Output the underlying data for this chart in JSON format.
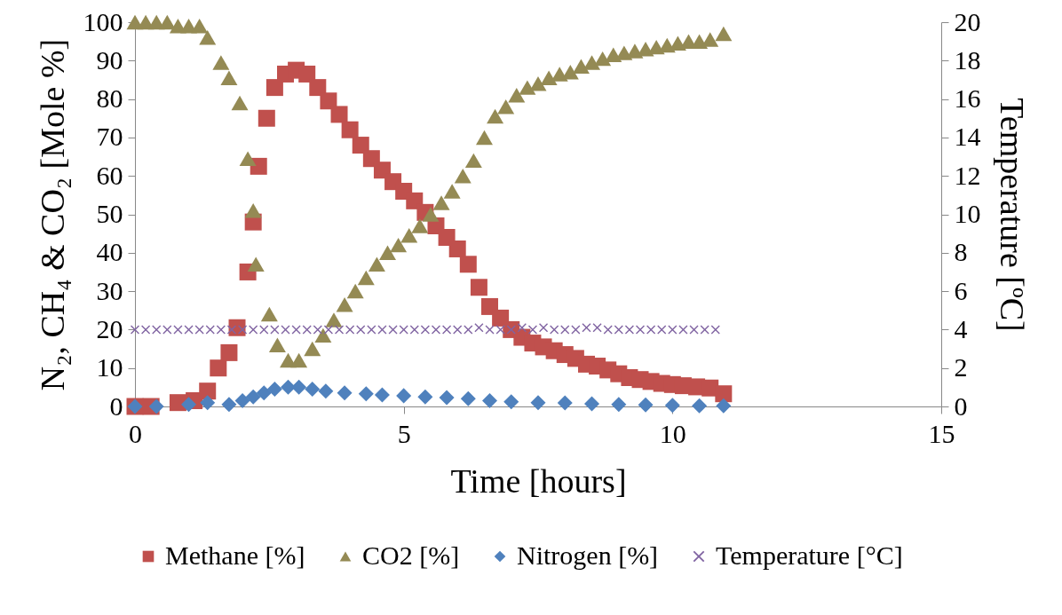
{
  "chart_data": {
    "type": "scatter",
    "xlabel": "Time [hours]",
    "ylabel": "N₂, CH₄ & CO₂ [Mole %]",
    "y2label": "Temperature [ºC]",
    "xlim": [
      0,
      15
    ],
    "xticks": [
      0,
      5,
      10,
      15
    ],
    "ylim": [
      0,
      100
    ],
    "yticks": [
      0,
      10,
      20,
      30,
      40,
      50,
      60,
      70,
      80,
      90,
      100
    ],
    "y2lim": [
      0,
      20
    ],
    "y2ticks": [
      0,
      2,
      4,
      6,
      8,
      10,
      12,
      14,
      16,
      18,
      20
    ],
    "legend": "bottom",
    "series": [
      {
        "name": "Methane [%]",
        "color": "#c0504d",
        "marker": "square",
        "x": [
          0,
          0.3,
          0.8,
          1.1,
          1.35,
          1.55,
          1.75,
          1.9,
          2.1,
          2.2,
          2.3,
          2.45,
          2.6,
          2.8,
          3.0,
          3.2,
          3.4,
          3.6,
          3.8,
          4.0,
          4.2,
          4.4,
          4.6,
          4.8,
          5.0,
          5.2,
          5.4,
          5.6,
          5.8,
          6.0,
          6.2,
          6.4,
          6.6,
          6.8,
          7.0,
          7.2,
          7.4,
          7.6,
          7.8,
          8.0,
          8.2,
          8.4,
          8.6,
          8.8,
          9.0,
          9.2,
          9.4,
          9.6,
          9.8,
          10.0,
          10.2,
          10.45,
          10.7,
          10.95
        ],
        "values": [
          0,
          0,
          1,
          1.5,
          4,
          10,
          14,
          20.5,
          35,
          48,
          62.5,
          75,
          83,
          86.5,
          87.5,
          86.5,
          83,
          79.5,
          76,
          72,
          68,
          64.5,
          61.5,
          58.5,
          56,
          53.5,
          50.5,
          47,
          44,
          41,
          37,
          31,
          26,
          23,
          20,
          18,
          16.5,
          15.5,
          14.5,
          13.5,
          12.5,
          11,
          10.5,
          9.5,
          8.5,
          7.5,
          7,
          6.5,
          6,
          5.7,
          5.4,
          5.1,
          4.8,
          3.3
        ]
      },
      {
        "name": "CO2 [%]",
        "color": "#948a54",
        "marker": "triangle",
        "x": [
          0,
          0.2,
          0.4,
          0.6,
          0.8,
          1.0,
          1.2,
          1.35,
          1.6,
          1.75,
          1.95,
          2.1,
          2.2,
          2.25,
          2.5,
          2.65,
          2.85,
          3.05,
          3.3,
          3.5,
          3.7,
          3.9,
          4.1,
          4.3,
          4.5,
          4.7,
          4.9,
          5.1,
          5.3,
          5.5,
          5.7,
          5.9,
          6.1,
          6.3,
          6.5,
          6.7,
          6.9,
          7.1,
          7.3,
          7.5,
          7.7,
          7.9,
          8.1,
          8.3,
          8.5,
          8.7,
          8.9,
          9.1,
          9.3,
          9.5,
          9.7,
          9.9,
          10.1,
          10.3,
          10.5,
          10.7,
          10.95
        ],
        "values": [
          100,
          100,
          100,
          100,
          99,
          99,
          99,
          96,
          89.5,
          85.5,
          79,
          64.5,
          51,
          37,
          24,
          16,
          12,
          12,
          15,
          18.5,
          22.5,
          26.5,
          30,
          33.5,
          37,
          40,
          42,
          44.5,
          47,
          50,
          53,
          56,
          60,
          64,
          70,
          75.5,
          78,
          81,
          83,
          84,
          85.5,
          86.5,
          87,
          88.5,
          89.5,
          90.5,
          91.5,
          92,
          92.5,
          93,
          93.5,
          94,
          94.5,
          95,
          95,
          95.5,
          97
        ]
      },
      {
        "name": "Nitrogen [%]",
        "color": "#4f81bd",
        "marker": "diamond",
        "x": [
          0,
          0.4,
          1.0,
          1.35,
          1.75,
          2.0,
          2.2,
          2.4,
          2.6,
          2.85,
          3.05,
          3.3,
          3.55,
          3.9,
          4.3,
          4.6,
          5.0,
          5.4,
          5.8,
          6.2,
          6.6,
          7.0,
          7.5,
          8.0,
          8.5,
          9.0,
          9.5,
          10.0,
          10.5,
          10.95
        ],
        "values": [
          0,
          0,
          0.5,
          1,
          0.5,
          1.5,
          2.5,
          3.5,
          4.5,
          5,
          5,
          4.5,
          4,
          3.5,
          3.3,
          3,
          2.8,
          2.5,
          2.3,
          2,
          1.5,
          1.2,
          1,
          0.9,
          0.7,
          0.5,
          0.4,
          0.3,
          0.2,
          0.2
        ]
      },
      {
        "name": "Temperature [°C]",
        "color": "#8064a2",
        "marker": "cross",
        "axis": "y2",
        "x": [
          0,
          0.2,
          0.4,
          0.6,
          0.8,
          1.0,
          1.2,
          1.4,
          1.6,
          1.8,
          2.0,
          2.2,
          2.4,
          2.6,
          2.8,
          3.0,
          3.2,
          3.4,
          3.6,
          3.8,
          4.0,
          4.2,
          4.4,
          4.6,
          4.8,
          5.0,
          5.2,
          5.4,
          5.6,
          5.8,
          6.0,
          6.2,
          6.4,
          6.6,
          6.8,
          7.0,
          7.2,
          7.4,
          7.6,
          7.8,
          8.0,
          8.2,
          8.4,
          8.6,
          8.8,
          9.0,
          9.2,
          9.4,
          9.6,
          9.8,
          10.0,
          10.2,
          10.4,
          10.6,
          10.8
        ],
        "values": [
          4,
          4,
          4,
          4,
          4,
          4,
          4,
          4,
          4,
          4,
          4,
          4,
          4,
          4,
          4,
          4,
          4,
          4,
          4,
          4,
          4,
          4,
          4,
          4,
          4,
          4,
          4,
          4,
          4,
          4,
          4,
          4,
          4.1,
          4,
          4,
          4,
          4.1,
          4,
          4.1,
          4,
          4,
          4,
          4.1,
          4.1,
          4,
          4,
          4,
          4,
          4,
          4,
          4,
          4,
          4,
          4,
          4
        ]
      }
    ]
  }
}
